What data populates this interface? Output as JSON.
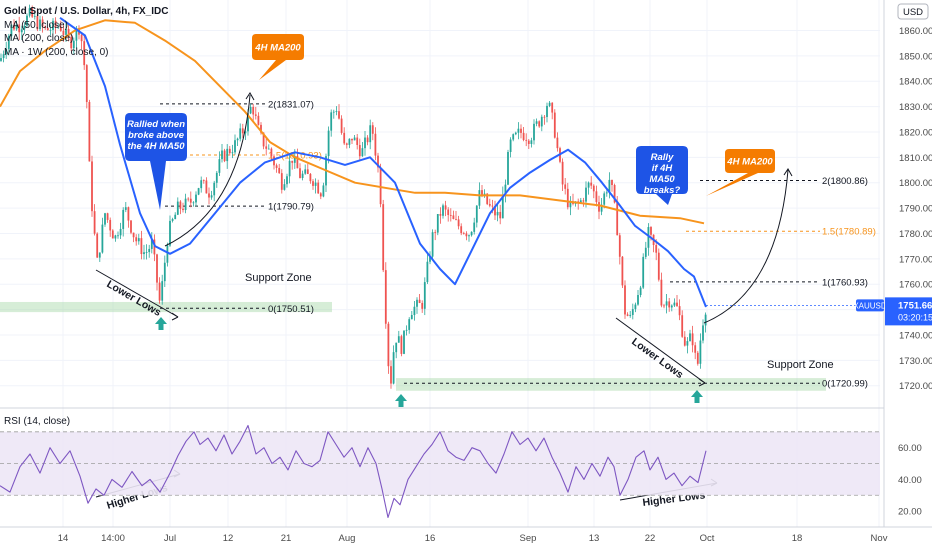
{
  "chart_data": {
    "type": "candlestick",
    "symbol_title": "Gold Spot / U.S. Dollar, 4h, FX_IDC",
    "indicators": [
      "MA (50, close)",
      "MA (200, close)",
      "MA · 1W (200, close, 0)"
    ],
    "currency_button": "USD",
    "price_axis": {
      "range": [
        1712,
        1872
      ],
      "ticks": [
        {
          "value": 1720,
          "label": "1720.00"
        },
        {
          "value": 1730,
          "label": "1730.00"
        },
        {
          "value": 1740,
          "label": "1740.00"
        },
        {
          "value": 1750,
          "label": "1750.00"
        },
        {
          "value": 1760,
          "label": "1760.00"
        },
        {
          "value": 1770,
          "label": "1770.00"
        },
        {
          "value": 1780,
          "label": "1780.00"
        },
        {
          "value": 1790,
          "label": "1790.00"
        },
        {
          "value": 1800,
          "label": "1800.00"
        },
        {
          "value": 1810,
          "label": "1810.00"
        },
        {
          "value": 1820,
          "label": "1820.00"
        },
        {
          "value": 1830,
          "label": "1830.00"
        },
        {
          "value": 1840,
          "label": "1840.00"
        },
        {
          "value": 1850,
          "label": "1850.00"
        },
        {
          "value": 1860,
          "label": "1860.00"
        }
      ]
    },
    "last_price": {
      "symbol": "XAUUSD",
      "value": 1751.66,
      "label": "1751.66",
      "countdown": "03:20:15"
    },
    "time_axis": [
      "14",
      "14:00",
      "Jul",
      "12",
      "21",
      "Aug",
      "16",
      "Sep",
      "13",
      "22",
      "Oct",
      "18",
      "Nov"
    ],
    "price_series": [
      {
        "x": 0,
        "price": 1848
      },
      {
        "x": 12,
        "price": 1862
      },
      {
        "x": 20,
        "price": 1862
      },
      {
        "x": 30,
        "price": 1866
      },
      {
        "x": 45,
        "price": 1860
      },
      {
        "x": 60,
        "price": 1862
      },
      {
        "x": 70,
        "price": 1855
      },
      {
        "x": 80,
        "price": 1862
      },
      {
        "x": 86,
        "price": 1840
      },
      {
        "x": 90,
        "price": 1800
      },
      {
        "x": 97,
        "price": 1768
      },
      {
        "x": 105,
        "price": 1788
      },
      {
        "x": 115,
        "price": 1778
      },
      {
        "x": 125,
        "price": 1790
      },
      {
        "x": 135,
        "price": 1778
      },
      {
        "x": 145,
        "price": 1772
      },
      {
        "x": 152,
        "price": 1776
      },
      {
        "x": 160,
        "price": 1752
      },
      {
        "x": 168,
        "price": 1780
      },
      {
        "x": 178,
        "price": 1790
      },
      {
        "x": 190,
        "price": 1792
      },
      {
        "x": 200,
        "price": 1800
      },
      {
        "x": 210,
        "price": 1796
      },
      {
        "x": 222,
        "price": 1810
      },
      {
        "x": 235,
        "price": 1815
      },
      {
        "x": 245,
        "price": 1822
      },
      {
        "x": 252,
        "price": 1831
      },
      {
        "x": 260,
        "price": 1818
      },
      {
        "x": 270,
        "price": 1812
      },
      {
        "x": 282,
        "price": 1800
      },
      {
        "x": 292,
        "price": 1810
      },
      {
        "x": 300,
        "price": 1803
      },
      {
        "x": 312,
        "price": 1802
      },
      {
        "x": 322,
        "price": 1796
      },
      {
        "x": 330,
        "price": 1826
      },
      {
        "x": 337,
        "price": 1830
      },
      {
        "x": 345,
        "price": 1812
      },
      {
        "x": 352,
        "price": 1818
      },
      {
        "x": 362,
        "price": 1812
      },
      {
        "x": 372,
        "price": 1822
      },
      {
        "x": 380,
        "price": 1800
      },
      {
        "x": 384,
        "price": 1760
      },
      {
        "x": 390,
        "price": 1718
      },
      {
        "x": 395,
        "price": 1740
      },
      {
        "x": 402,
        "price": 1735
      },
      {
        "x": 410,
        "price": 1750
      },
      {
        "x": 422,
        "price": 1752
      },
      {
        "x": 432,
        "price": 1778
      },
      {
        "x": 442,
        "price": 1790
      },
      {
        "x": 452,
        "price": 1785
      },
      {
        "x": 462,
        "price": 1782
      },
      {
        "x": 470,
        "price": 1780
      },
      {
        "x": 480,
        "price": 1796
      },
      {
        "x": 490,
        "price": 1790
      },
      {
        "x": 500,
        "price": 1786
      },
      {
        "x": 510,
        "price": 1815
      },
      {
        "x": 520,
        "price": 1820
      },
      {
        "x": 530,
        "price": 1818
      },
      {
        "x": 540,
        "price": 1825
      },
      {
        "x": 548,
        "price": 1832
      },
      {
        "x": 555,
        "price": 1820
      },
      {
        "x": 562,
        "price": 1800
      },
      {
        "x": 570,
        "price": 1790
      },
      {
        "x": 580,
        "price": 1792
      },
      {
        "x": 590,
        "price": 1800
      },
      {
        "x": 600,
        "price": 1790
      },
      {
        "x": 610,
        "price": 1802
      },
      {
        "x": 618,
        "price": 1780
      },
      {
        "x": 624,
        "price": 1750
      },
      {
        "x": 630,
        "price": 1746
      },
      {
        "x": 640,
        "price": 1760
      },
      {
        "x": 648,
        "price": 1780
      },
      {
        "x": 656,
        "price": 1772
      },
      {
        "x": 662,
        "price": 1752
      },
      {
        "x": 670,
        "price": 1754
      },
      {
        "x": 678,
        "price": 1750
      },
      {
        "x": 686,
        "price": 1735
      },
      {
        "x": 692,
        "price": 1740
      },
      {
        "x": 697,
        "price": 1726
      },
      {
        "x": 702,
        "price": 1744
      },
      {
        "x": 706,
        "price": 1751.66
      }
    ],
    "ma50": [
      {
        "x": 60,
        "price": 1865
      },
      {
        "x": 85,
        "price": 1858
      },
      {
        "x": 105,
        "price": 1838
      },
      {
        "x": 120,
        "price": 1815
      },
      {
        "x": 140,
        "price": 1788
      },
      {
        "x": 155,
        "price": 1775
      },
      {
        "x": 170,
        "price": 1772
      },
      {
        "x": 190,
        "price": 1776
      },
      {
        "x": 215,
        "price": 1788
      },
      {
        "x": 240,
        "price": 1800
      },
      {
        "x": 265,
        "price": 1808
      },
      {
        "x": 295,
        "price": 1812
      },
      {
        "x": 320,
        "price": 1810
      },
      {
        "x": 345,
        "price": 1807
      },
      {
        "x": 370,
        "price": 1810
      },
      {
        "x": 395,
        "price": 1800
      },
      {
        "x": 420,
        "price": 1776
      },
      {
        "x": 440,
        "price": 1766
      },
      {
        "x": 455,
        "price": 1760
      },
      {
        "x": 470,
        "price": 1772
      },
      {
        "x": 490,
        "price": 1788
      },
      {
        "x": 510,
        "price": 1798
      },
      {
        "x": 530,
        "price": 1804
      },
      {
        "x": 550,
        "price": 1809
      },
      {
        "x": 568,
        "price": 1813
      },
      {
        "x": 585,
        "price": 1808
      },
      {
        "x": 602,
        "price": 1800
      },
      {
        "x": 618,
        "price": 1792
      },
      {
        "x": 635,
        "price": 1783
      },
      {
        "x": 652,
        "price": 1778
      },
      {
        "x": 668,
        "price": 1773
      },
      {
        "x": 684,
        "price": 1766
      },
      {
        "x": 694,
        "price": 1763
      },
      {
        "x": 706,
        "price": 1751
      }
    ],
    "ma200": [
      {
        "x": 0,
        "price": 1830
      },
      {
        "x": 20,
        "price": 1844
      },
      {
        "x": 45,
        "price": 1852
      },
      {
        "x": 75,
        "price": 1860
      },
      {
        "x": 105,
        "price": 1864
      },
      {
        "x": 135,
        "price": 1863
      },
      {
        "x": 165,
        "price": 1856
      },
      {
        "x": 195,
        "price": 1848
      },
      {
        "x": 220,
        "price": 1838
      },
      {
        "x": 245,
        "price": 1828
      },
      {
        "x": 270,
        "price": 1816
      },
      {
        "x": 295,
        "price": 1810
      },
      {
        "x": 325,
        "price": 1805
      },
      {
        "x": 355,
        "price": 1800
      },
      {
        "x": 385,
        "price": 1798
      },
      {
        "x": 415,
        "price": 1796
      },
      {
        "x": 445,
        "price": 1796
      },
      {
        "x": 480,
        "price": 1795
      },
      {
        "x": 520,
        "price": 1795
      },
      {
        "x": 560,
        "price": 1793
      },
      {
        "x": 600,
        "price": 1791
      },
      {
        "x": 640,
        "price": 1787
      },
      {
        "x": 680,
        "price": 1786
      },
      {
        "x": 704,
        "price": 1784
      }
    ],
    "fib_levels": [
      {
        "label": "0(1750.51)",
        "value": 1750.51,
        "style": "dashed"
      },
      {
        "label": "1(1790.79)",
        "value": 1790.79,
        "style": "dashed"
      },
      {
        "label": "1.5(1810.93)",
        "value": 1810.93,
        "style": "dashed-orange"
      },
      {
        "label": "2(1831.07)",
        "value": 1831.07,
        "style": "dashed"
      },
      {
        "label": "0(1720.99)",
        "value": 1720.99,
        "style": "dashed"
      },
      {
        "label": "1(1760.93)",
        "value": 1760.93,
        "style": "dashed"
      },
      {
        "label": "1.5(1780.89)",
        "value": 1780.89,
        "style": "dashed-orange"
      },
      {
        "label": "2(1800.86)",
        "value": 1800.86,
        "style": "dashed"
      }
    ],
    "support_zones": [
      {
        "label": "Support Zone",
        "low": 1749,
        "high": 1753
      },
      {
        "label": "Support Zone",
        "low": 1718,
        "high": 1723
      }
    ],
    "annotations": [
      {
        "text": "4H MA200",
        "kind": "callout-orange"
      },
      {
        "text": "Rallied when broke above the 4H MA50",
        "kind": "callout-blue"
      },
      {
        "text": "Rally if 4H MA50 breaks?",
        "kind": "callout-blue"
      },
      {
        "text": "4H MA200",
        "kind": "callout-orange"
      },
      {
        "text": "Lower Lows",
        "kind": "trendline-label"
      },
      {
        "text": "Lower Lows",
        "kind": "trendline-label"
      },
      {
        "text": "Higher Lows",
        "kind": "trendline-label"
      },
      {
        "text": "Higher Lows",
        "kind": "trendline-label"
      }
    ],
    "rsi": {
      "title": "RSI (14, close)",
      "range": [
        10,
        85
      ],
      "ticks": [
        {
          "value": 20,
          "label": "20.00"
        },
        {
          "value": 40,
          "label": "40.00"
        },
        {
          "value": 60,
          "label": "60.00"
        }
      ],
      "band": [
        30,
        70
      ],
      "midline": 50,
      "values": [
        {
          "x": 0,
          "v": 36
        },
        {
          "x": 10,
          "v": 32
        },
        {
          "x": 20,
          "v": 48
        },
        {
          "x": 30,
          "v": 56
        },
        {
          "x": 40,
          "v": 44
        },
        {
          "x": 50,
          "v": 60
        },
        {
          "x": 60,
          "v": 50
        },
        {
          "x": 70,
          "v": 58
        },
        {
          "x": 80,
          "v": 42
        },
        {
          "x": 88,
          "v": 25
        },
        {
          "x": 96,
          "v": 34
        },
        {
          "x": 104,
          "v": 30
        },
        {
          "x": 112,
          "v": 40
        },
        {
          "x": 122,
          "v": 35
        },
        {
          "x": 132,
          "v": 45
        },
        {
          "x": 142,
          "v": 36
        },
        {
          "x": 150,
          "v": 40
        },
        {
          "x": 160,
          "v": 32
        },
        {
          "x": 170,
          "v": 44
        },
        {
          "x": 178,
          "v": 55
        },
        {
          "x": 186,
          "v": 64
        },
        {
          "x": 194,
          "v": 70
        },
        {
          "x": 200,
          "v": 62
        },
        {
          "x": 208,
          "v": 66
        },
        {
          "x": 216,
          "v": 58
        },
        {
          "x": 224,
          "v": 68
        },
        {
          "x": 232,
          "v": 56
        },
        {
          "x": 240,
          "v": 64
        },
        {
          "x": 248,
          "v": 74
        },
        {
          "x": 256,
          "v": 56
        },
        {
          "x": 264,
          "v": 60
        },
        {
          "x": 272,
          "v": 50
        },
        {
          "x": 280,
          "v": 54
        },
        {
          "x": 288,
          "v": 46
        },
        {
          "x": 296,
          "v": 58
        },
        {
          "x": 304,
          "v": 50
        },
        {
          "x": 312,
          "v": 48
        },
        {
          "x": 320,
          "v": 52
        },
        {
          "x": 328,
          "v": 70
        },
        {
          "x": 336,
          "v": 62
        },
        {
          "x": 344,
          "v": 54
        },
        {
          "x": 352,
          "v": 60
        },
        {
          "x": 360,
          "v": 48
        },
        {
          "x": 368,
          "v": 60
        },
        {
          "x": 376,
          "v": 50
        },
        {
          "x": 382,
          "v": 34
        },
        {
          "x": 388,
          "v": 16
        },
        {
          "x": 394,
          "v": 28
        },
        {
          "x": 400,
          "v": 24
        },
        {
          "x": 408,
          "v": 40
        },
        {
          "x": 416,
          "v": 48
        },
        {
          "x": 424,
          "v": 56
        },
        {
          "x": 432,
          "v": 62
        },
        {
          "x": 440,
          "v": 70
        },
        {
          "x": 448,
          "v": 58
        },
        {
          "x": 456,
          "v": 54
        },
        {
          "x": 464,
          "v": 52
        },
        {
          "x": 472,
          "v": 60
        },
        {
          "x": 480,
          "v": 58
        },
        {
          "x": 488,
          "v": 50
        },
        {
          "x": 496,
          "v": 44
        },
        {
          "x": 504,
          "v": 56
        },
        {
          "x": 512,
          "v": 70
        },
        {
          "x": 520,
          "v": 62
        },
        {
          "x": 528,
          "v": 66
        },
        {
          "x": 536,
          "v": 58
        },
        {
          "x": 544,
          "v": 66
        },
        {
          "x": 552,
          "v": 54
        },
        {
          "x": 560,
          "v": 44
        },
        {
          "x": 568,
          "v": 32
        },
        {
          "x": 576,
          "v": 48
        },
        {
          "x": 584,
          "v": 40
        },
        {
          "x": 592,
          "v": 50
        },
        {
          "x": 600,
          "v": 42
        },
        {
          "x": 608,
          "v": 54
        },
        {
          "x": 614,
          "v": 48
        },
        {
          "x": 620,
          "v": 30
        },
        {
          "x": 628,
          "v": 40
        },
        {
          "x": 636,
          "v": 54
        },
        {
          "x": 644,
          "v": 58
        },
        {
          "x": 650,
          "v": 46
        },
        {
          "x": 658,
          "v": 54
        },
        {
          "x": 666,
          "v": 40
        },
        {
          "x": 674,
          "v": 44
        },
        {
          "x": 682,
          "v": 36
        },
        {
          "x": 690,
          "v": 42
        },
        {
          "x": 698,
          "v": 38
        },
        {
          "x": 706,
          "v": 58
        }
      ]
    }
  },
  "colors": {
    "up": "#26a69a",
    "down": "#ef5350",
    "ma50": "#2962ff",
    "ma200": "#f7941d",
    "fib_line": "#131722",
    "fib_orange": "#f7941d",
    "zone": "#a5d6a7",
    "callout_orange": "#f57c00",
    "callout_blue": "#1e54e6",
    "arrow_green": "#26a69a",
    "rsi_line": "#7e57c2",
    "rsi_band": "#ede7f6",
    "last_price_tag": "#2962ff",
    "axis_text": "#4a4a4a",
    "grid": "#f0f3fa"
  }
}
